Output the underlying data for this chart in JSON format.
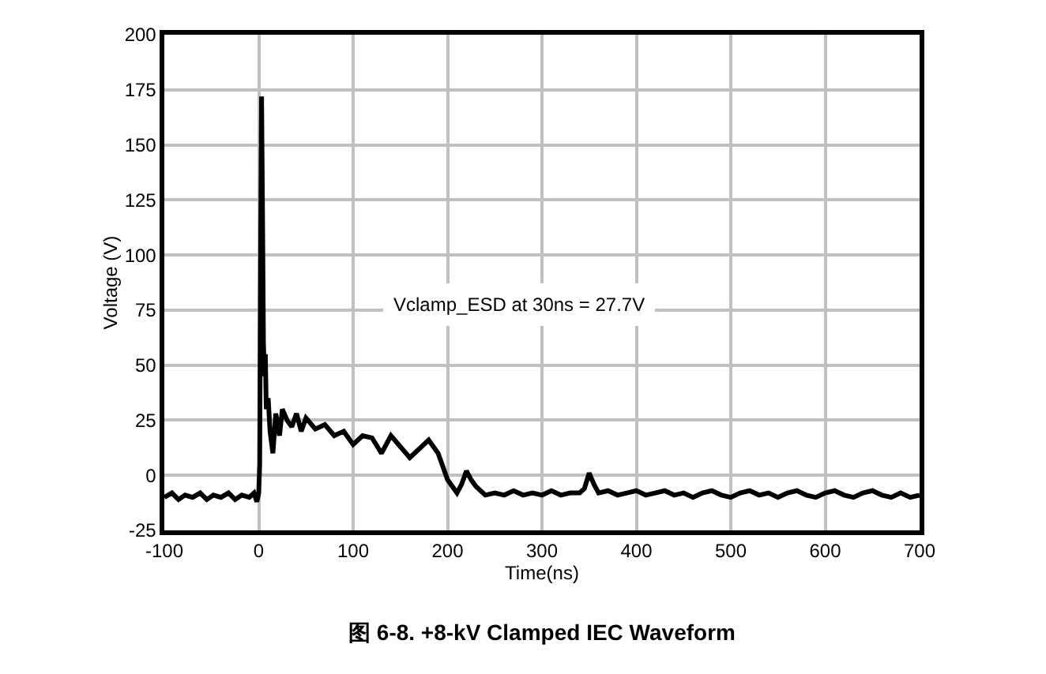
{
  "chart_data": {
    "type": "line",
    "title": "图 6-8. +8-kV Clamped IEC Waveform",
    "xlabel": "Time(ns)",
    "ylabel": "Voltage (V)",
    "annotations": [
      "Vclamp_ESD at 30ns = 27.7V"
    ],
    "x": [
      -100,
      -92,
      -85,
      -78,
      -70,
      -62,
      -55,
      -48,
      -40,
      -32,
      -25,
      -18,
      -10,
      -5,
      -2,
      0,
      1,
      2,
      3,
      4,
      5,
      6,
      7,
      8,
      10,
      12,
      15,
      18,
      22,
      25,
      30,
      35,
      40,
      45,
      50,
      60,
      70,
      80,
      90,
      100,
      110,
      120,
      130,
      140,
      150,
      160,
      170,
      180,
      190,
      200,
      210,
      215,
      220,
      225,
      230,
      240,
      250,
      260,
      270,
      280,
      290,
      300,
      310,
      320,
      330,
      340,
      345,
      350,
      355,
      360,
      370,
      380,
      390,
      400,
      410,
      420,
      430,
      440,
      450,
      460,
      470,
      480,
      490,
      500,
      510,
      520,
      530,
      540,
      550,
      560,
      570,
      580,
      590,
      600,
      610,
      620,
      630,
      640,
      650,
      660,
      670,
      680,
      690,
      700
    ],
    "series": [
      {
        "color": "#000000",
        "values": [
          -10,
          -8,
          -11,
          -9,
          -10,
          -8,
          -11,
          -9,
          -10,
          -8,
          -11,
          -9,
          -10,
          -8,
          -12,
          -8,
          5,
          100,
          172,
          120,
          60,
          45,
          55,
          30,
          35,
          20,
          10,
          28,
          18,
          30,
          25,
          22,
          28,
          20,
          26,
          21,
          23,
          18,
          20,
          14,
          18,
          17,
          10,
          18,
          13,
          8,
          12,
          16,
          10,
          -2,
          -8,
          -4,
          2,
          -2,
          -5,
          -9,
          -8,
          -9,
          -7,
          -9,
          -8,
          -9,
          -7,
          -9,
          -8,
          -8,
          -6,
          1,
          -4,
          -8,
          -7,
          -9,
          -8,
          -7,
          -9,
          -8,
          -7,
          -9,
          -8,
          -10,
          -8,
          -7,
          -9,
          -10,
          -8,
          -7,
          -9,
          -8,
          -10,
          -8,
          -7,
          -9,
          -10,
          -8,
          -7,
          -9,
          -10,
          -8,
          -7,
          -9,
          -10,
          -8,
          -10,
          -9
        ]
      }
    ],
    "xlim": [
      -100,
      700
    ],
    "xticks": [
      -100,
      0,
      100,
      200,
      300,
      400,
      500,
      600,
      700
    ],
    "ylim": [
      -25,
      200
    ],
    "yticks": [
      -25,
      0,
      25,
      50,
      75,
      100,
      125,
      150,
      175,
      200
    ],
    "grid": true,
    "legend": false,
    "line_style": "solid",
    "marker": "none"
  }
}
